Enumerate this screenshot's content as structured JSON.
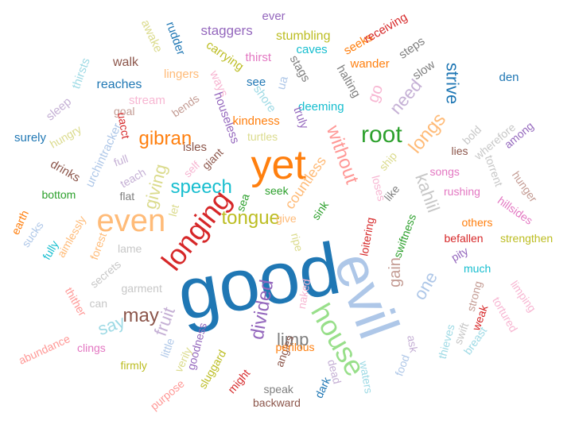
{
  "words": [
    {
      "text": "good",
      "color": "#1f77b4"
    },
    {
      "text": "evil",
      "color": "#aec7e8"
    },
    {
      "text": "yet",
      "color": "#ff7f0e"
    },
    {
      "text": "even",
      "color": "#ffbb78"
    },
    {
      "text": "longing",
      "color": "#d62728"
    },
    {
      "text": "house",
      "color": "#98df8a"
    },
    {
      "text": "root",
      "color": "#2ca02c"
    },
    {
      "text": "speech",
      "color": "#17becf"
    },
    {
      "text": "tongue",
      "color": "#bcbd22"
    },
    {
      "text": "gibran",
      "color": "#ff7f0e"
    },
    {
      "text": "giving",
      "color": "#dbdb8d"
    },
    {
      "text": "without",
      "color": "#ff9896"
    },
    {
      "text": "longs",
      "color": "#ffbb78"
    },
    {
      "text": "kahlil",
      "color": "#c7c7c7"
    },
    {
      "text": "divided",
      "color": "#9467bd"
    },
    {
      "text": "may",
      "color": "#8c564b"
    },
    {
      "text": "say",
      "color": "#9edae5"
    },
    {
      "text": "fruit",
      "color": "#c5b0d5"
    },
    {
      "text": "limp",
      "color": "#7f7f7f"
    },
    {
      "text": "need",
      "color": "#c5b0d5"
    },
    {
      "text": "strive",
      "color": "#1f77b4"
    },
    {
      "text": "one",
      "color": "#aec7e8"
    },
    {
      "text": "gain",
      "color": "#c49c94"
    },
    {
      "text": "go",
      "color": "#f7b6d2"
    },
    {
      "text": "countless",
      "color": "#ffbb78"
    },
    {
      "text": "walk",
      "color": "#8c564b"
    },
    {
      "text": "reaches",
      "color": "#1f77b4"
    },
    {
      "text": "staggers",
      "color": "#9467bd"
    },
    {
      "text": "ever",
      "color": "#9467bd"
    },
    {
      "text": "stumbling",
      "color": "#bcbd22"
    },
    {
      "text": "caves",
      "color": "#17becf"
    },
    {
      "text": "seeks",
      "color": "#ff7f0e"
    },
    {
      "text": "receiving",
      "color": "#d62728"
    },
    {
      "text": "steps",
      "color": "#7f7f7f"
    },
    {
      "text": "wander",
      "color": "#ff7f0e"
    },
    {
      "text": "slow",
      "color": "#7f7f7f"
    },
    {
      "text": "den",
      "color": "#1f77b4"
    },
    {
      "text": "awake",
      "color": "#dbdb8d"
    },
    {
      "text": "rudder",
      "color": "#1f77b4"
    },
    {
      "text": "carrying",
      "color": "#bcbd22"
    },
    {
      "text": "thirst",
      "color": "#e377c2"
    },
    {
      "text": "stags",
      "color": "#7f7f7f"
    },
    {
      "text": "halting",
      "color": "#7f7f7f"
    },
    {
      "text": "lingers",
      "color": "#ffbb78"
    },
    {
      "text": "ways",
      "color": "#f7b6d2"
    },
    {
      "text": "see",
      "color": "#1f77b4"
    },
    {
      "text": "ua",
      "color": "#aec7e8"
    },
    {
      "text": "shore",
      "color": "#9edae5"
    },
    {
      "text": "deeming",
      "color": "#17becf"
    },
    {
      "text": "thirsts",
      "color": "#9edae5"
    },
    {
      "text": "sleep",
      "color": "#c5b0d5"
    },
    {
      "text": "stream",
      "color": "#f7b6d2"
    },
    {
      "text": "bends",
      "color": "#c49c94"
    },
    {
      "text": "goal",
      "color": "#c49c94"
    },
    {
      "text": "houseless",
      "color": "#9467bd"
    },
    {
      "text": "truly",
      "color": "#9467bd"
    },
    {
      "text": "kindness",
      "color": "#ff7f0e"
    },
    {
      "text": "turtles",
      "color": "#dbdb8d"
    },
    {
      "text": "hungry",
      "color": "#dbdb8d"
    },
    {
      "text": "surely",
      "color": "#1f77b4"
    },
    {
      "text": "urchintracker",
      "color": "#aec7e8"
    },
    {
      "text": "uacct",
      "color": "#d62728"
    },
    {
      "text": "full",
      "color": "#c5b0d5"
    },
    {
      "text": "teach",
      "color": "#c5b0d5"
    },
    {
      "text": "drinks",
      "color": "#8c564b"
    },
    {
      "text": "isles",
      "color": "#8c564b"
    },
    {
      "text": "giant",
      "color": "#8c564b"
    },
    {
      "text": "self",
      "color": "#f7b6d2"
    },
    {
      "text": "flat",
      "color": "#7f7f7f"
    },
    {
      "text": "bottom",
      "color": "#2ca02c"
    },
    {
      "text": "let",
      "color": "#dbdb8d"
    },
    {
      "text": "sea",
      "color": "#2ca02c"
    },
    {
      "text": "seek",
      "color": "#2ca02c"
    },
    {
      "text": "sink",
      "color": "#2ca02c"
    },
    {
      "text": "ship",
      "color": "#dbdb8d"
    },
    {
      "text": "loses",
      "color": "#f7b6d2"
    },
    {
      "text": "like",
      "color": "#7f7f7f"
    },
    {
      "text": "lies",
      "color": "#8c564b"
    },
    {
      "text": "bold",
      "color": "#c7c7c7"
    },
    {
      "text": "wherefore",
      "color": "#c7c7c7"
    },
    {
      "text": "among",
      "color": "#9467bd"
    },
    {
      "text": "songs",
      "color": "#e377c2"
    },
    {
      "text": "torrent",
      "color": "#c7c7c7"
    },
    {
      "text": "rushing",
      "color": "#e377c2"
    },
    {
      "text": "hunger",
      "color": "#c49c94"
    },
    {
      "text": "hillsides",
      "color": "#e377c2"
    },
    {
      "text": "earth",
      "color": "#ff7f0e"
    },
    {
      "text": "sucks",
      "color": "#aec7e8"
    },
    {
      "text": "aimlessly",
      "color": "#ffbb78"
    },
    {
      "text": "fully",
      "color": "#17becf"
    },
    {
      "text": "forest",
      "color": "#ffbb78"
    },
    {
      "text": "lame",
      "color": "#c7c7c7"
    },
    {
      "text": "ripe",
      "color": "#dbdb8d"
    },
    {
      "text": "loitering",
      "color": "#d62728"
    },
    {
      "text": "swiftness",
      "color": "#2ca02c"
    },
    {
      "text": "others",
      "color": "#ff7f0e"
    },
    {
      "text": "befallen",
      "color": "#d62728"
    },
    {
      "text": "strengthen",
      "color": "#bcbd22"
    },
    {
      "text": "pity",
      "color": "#9467bd"
    },
    {
      "text": "much",
      "color": "#17becf"
    },
    {
      "text": "secrets",
      "color": "#c7c7c7"
    },
    {
      "text": "garment",
      "color": "#c7c7c7"
    },
    {
      "text": "thither",
      "color": "#ff9896"
    },
    {
      "text": "can",
      "color": "#c7c7c7"
    },
    {
      "text": "naked",
      "color": "#f7b6d2"
    },
    {
      "text": "strong",
      "color": "#c49c94"
    },
    {
      "text": "limping",
      "color": "#f7b6d2"
    },
    {
      "text": "tortured",
      "color": "#f7b6d2"
    },
    {
      "text": "weak",
      "color": "#d62728"
    },
    {
      "text": "swift",
      "color": "#c7c7c7"
    },
    {
      "text": "thieves",
      "color": "#9edae5"
    },
    {
      "text": "breast",
      "color": "#9edae5"
    },
    {
      "text": "ask",
      "color": "#c5b0d5"
    },
    {
      "text": "abundance",
      "color": "#ff9896"
    },
    {
      "text": "clings",
      "color": "#e377c2"
    },
    {
      "text": "firmly",
      "color": "#bcbd22"
    },
    {
      "text": "little",
      "color": "#aec7e8"
    },
    {
      "text": "verily",
      "color": "#dbdb8d"
    },
    {
      "text": "goodness",
      "color": "#9467bd"
    },
    {
      "text": "sluggard",
      "color": "#bcbd22"
    },
    {
      "text": "angles",
      "color": "#8c564b"
    },
    {
      "text": "perilous",
      "color": "#ff7f0e"
    },
    {
      "text": "might",
      "color": "#d62728"
    },
    {
      "text": "speak",
      "color": "#7f7f7f"
    },
    {
      "text": "dark",
      "color": "#1f77b4"
    },
    {
      "text": "dead",
      "color": "#c5b0d5"
    },
    {
      "text": "waters",
      "color": "#9edae5"
    },
    {
      "text": "food",
      "color": "#aec7e8"
    },
    {
      "text": "purpose",
      "color": "#ff9896"
    },
    {
      "text": "backward",
      "color": "#8c564b"
    },
    {
      "text": "give",
      "color": "#ffbb78"
    }
  ]
}
